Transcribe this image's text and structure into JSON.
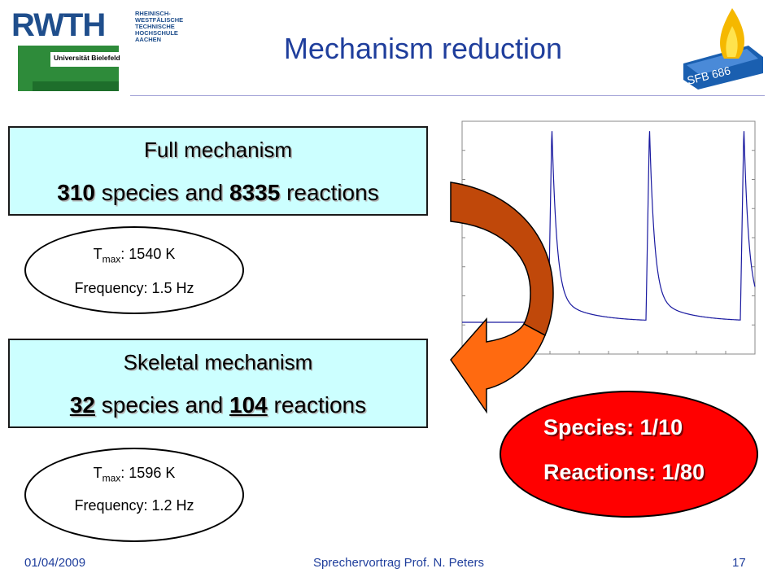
{
  "logos": {
    "rwth": {
      "word": "RWTH",
      "lines": [
        "RHEINISCH-",
        "WESTFÄLISCHE",
        "TECHNISCHE",
        "HOCHSCHULE",
        "AACHEN"
      ]
    },
    "bielefeld": "Universität Bielefeld",
    "sfb": "SFB 686"
  },
  "title": "Mechanism reduction",
  "full": {
    "heading": "Full mechanism",
    "species": "310",
    "species_word": "species and",
    "reactions": "8335",
    "reactions_word": "reactions",
    "tmax_label": "T",
    "tmax_sub": "max",
    "tmax_value": ":  1540 K",
    "frequency": "Frequency:  1.5 Hz"
  },
  "skeletal": {
    "heading": "Skeletal mechanism",
    "species": "32",
    "species_word": "species and",
    "reactions": "104",
    "reactions_word": "reactions",
    "tmax_label": "T",
    "tmax_sub": "max",
    "tmax_value": ":  1596 K",
    "frequency": "Frequency:  1.2 Hz"
  },
  "ratio": {
    "species": "Species:  1/10",
    "reactions": "Reactions: 1/80"
  },
  "colors": {
    "title": "#1f3e9c",
    "box_fill": "#ccffff",
    "ratio_fill": "#ff0000",
    "arrow_dark": "#c0480a",
    "arrow_light": "#ff6a10",
    "trace": "#1a1aa0"
  },
  "footer": {
    "date": "01/04/2009",
    "center": "Sprechervortrag Prof. N. Peters",
    "page": "17"
  }
}
